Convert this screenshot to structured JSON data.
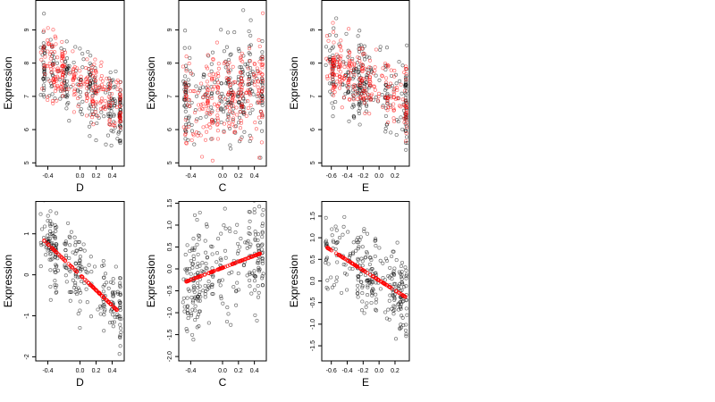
{
  "chart_data": [
    {
      "type": "scatter",
      "xlabel": "D",
      "ylabel": "Expression",
      "xlim": [
        -0.55,
        0.55
      ],
      "ylim": [
        4.9,
        9.9
      ],
      "xticks": [
        -0.4,
        0.0,
        0.2,
        0.4
      ],
      "xtick_labels": [
        "-0.4",
        "0.0",
        "0.2",
        "0.4"
      ],
      "yticks": [
        5,
        6,
        7,
        8,
        9
      ],
      "ytick_labels": [
        "5",
        "6",
        "7",
        "8",
        "9"
      ],
      "series": [
        {
          "color": "#000000",
          "description": "observed, group 1",
          "trend": {
            "x_range": [
              -0.5,
              0.5
            ],
            "y_start": 8.1,
            "y_end": 6.5,
            "spread": 0.55
          }
        },
        {
          "color": "#ff0000",
          "description": "observed, group 2",
          "trend": {
            "x_range": [
              -0.5,
              0.5
            ],
            "y_start": 8.2,
            "y_end": 6.6,
            "spread": 0.45
          }
        }
      ]
    },
    {
      "type": "scatter",
      "xlabel": "C",
      "ylabel": "Expression",
      "xlim": [
        -0.55,
        0.55
      ],
      "ylim": [
        4.9,
        9.9
      ],
      "xticks": [
        -0.4,
        0.0,
        0.2,
        0.4
      ],
      "xtick_labels": [
        "-0.4",
        "0.0",
        "0.2",
        "0.4"
      ],
      "yticks": [
        5,
        6,
        7,
        8,
        9
      ],
      "ytick_labels": [
        "5",
        "6",
        "7",
        "8",
        "9"
      ],
      "series": [
        {
          "color": "#000000",
          "description": "observed, group 1",
          "trend": {
            "x_range": [
              -0.5,
              0.5
            ],
            "y_start": 6.8,
            "y_end": 7.4,
            "spread": 0.8
          }
        },
        {
          "color": "#ff0000",
          "description": "observed, group 2",
          "trend": {
            "x_range": [
              -0.5,
              0.5
            ],
            "y_start": 6.7,
            "y_end": 7.3,
            "spread": 0.7
          }
        }
      ]
    },
    {
      "type": "scatter",
      "xlabel": "E",
      "ylabel": "Expression",
      "xlim": [
        -0.72,
        0.38
      ],
      "ylim": [
        4.9,
        9.9
      ],
      "xticks": [
        -0.6,
        -0.4,
        -0.2,
        0.0,
        0.2
      ],
      "xtick_labels": [
        "-0.6",
        "-0.4",
        "-0.2",
        "0.0",
        "0.2"
      ],
      "yticks": [
        5,
        6,
        7,
        8,
        9
      ],
      "ytick_labels": [
        "5",
        "6",
        "7",
        "8",
        "9"
      ],
      "series": [
        {
          "color": "#000000",
          "description": "observed, group 1",
          "trend": {
            "x_range": [
              -0.67,
              0.34
            ],
            "y_start": 7.9,
            "y_end": 6.7,
            "spread": 0.6
          }
        },
        {
          "color": "#ff0000",
          "description": "observed, group 2",
          "trend": {
            "x_range": [
              -0.67,
              0.34
            ],
            "y_start": 8.0,
            "y_end": 6.8,
            "spread": 0.5
          }
        }
      ]
    },
    {
      "type": "scatter",
      "xlabel": "D",
      "ylabel": "Expression",
      "xlim": [
        -0.55,
        0.55
      ],
      "ylim": [
        -2.1,
        1.8
      ],
      "xticks": [
        -0.4,
        0.0,
        0.2,
        0.4
      ],
      "xtick_labels": [
        "-0.4",
        "0.0",
        "0.2",
        "0.4"
      ],
      "yticks": [
        -2,
        -1,
        0,
        1
      ],
      "ytick_labels": [
        "-2",
        "-1",
        "0",
        "1"
      ],
      "series": [
        {
          "color": "#000000",
          "description": "residual data",
          "trend": {
            "x_range": [
              -0.5,
              0.5
            ],
            "y_start": 0.9,
            "y_end": -0.85,
            "spread": 0.45
          }
        },
        {
          "color": "#ff0000",
          "description": "fitted line",
          "fit": {
            "x": [
              -0.47,
              0.47
            ],
            "y": [
              0.88,
              -0.88
            ]
          }
        }
      ]
    },
    {
      "type": "scatter",
      "xlabel": "C",
      "ylabel": "Expression",
      "xlim": [
        -0.55,
        0.55
      ],
      "ylim": [
        -2.1,
        1.55
      ],
      "xticks": [
        -0.4,
        0.0,
        0.2,
        0.4
      ],
      "xtick_labels": [
        "-0.4",
        "0.0",
        "0.2",
        "0.4"
      ],
      "yticks": [
        -2.0,
        -1.5,
        -1.0,
        -0.5,
        0.0,
        0.5,
        1.0,
        1.5
      ],
      "ytick_labels": [
        "-2.0",
        "-1.5",
        "-1.0",
        "-0.5",
        "0.0",
        "0.5",
        "1.0",
        "1.5"
      ],
      "series": [
        {
          "color": "#000000",
          "description": "residual data",
          "trend": {
            "x_range": [
              -0.5,
              0.5
            ],
            "y_start": -0.3,
            "y_end": 0.35,
            "spread": 0.6
          }
        },
        {
          "color": "#ff0000",
          "description": "fitted line",
          "fit": {
            "x": [
              -0.47,
              0.47
            ],
            "y": [
              -0.3,
              0.35
            ]
          }
        }
      ]
    },
    {
      "type": "scatter",
      "xlabel": "E",
      "ylabel": "Expression",
      "xlim": [
        -0.72,
        0.38
      ],
      "ylim": [
        -1.85,
        1.85
      ],
      "xticks": [
        -0.6,
        -0.4,
        -0.2,
        0.0,
        0.2
      ],
      "xtick_labels": [
        "-0.6",
        "-0.4",
        "-0.2",
        "0.0",
        "0.2"
      ],
      "yticks": [
        -1.5,
        -1.0,
        -0.5,
        0.0,
        0.5,
        1.0,
        1.5
      ],
      "ytick_labels": [
        "-1.5",
        "-1.0",
        "-0.5",
        "0.0",
        "0.5",
        "1.0",
        "1.5"
      ],
      "series": [
        {
          "color": "#000000",
          "description": "residual data",
          "trend": {
            "x_range": [
              -0.67,
              0.34
            ],
            "y_start": 0.75,
            "y_end": -0.35,
            "spread": 0.5
          }
        },
        {
          "color": "#ff0000",
          "description": "fitted line",
          "fit": {
            "x": [
              -0.66,
              0.34
            ],
            "y": [
              0.78,
              -0.38
            ]
          }
        }
      ]
    }
  ]
}
